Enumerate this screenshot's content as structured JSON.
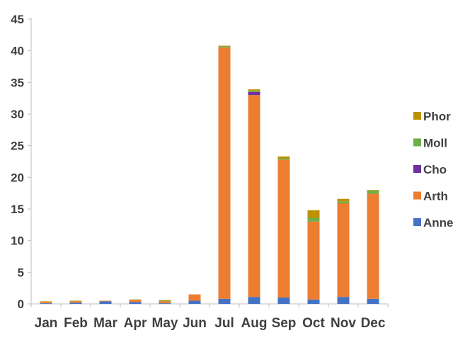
{
  "chart_data": {
    "type": "bar",
    "stacked": true,
    "title": "",
    "xlabel": "",
    "ylabel": "",
    "categories": [
      "Jan",
      "Feb",
      "Mar",
      "Apr",
      "May",
      "Jun",
      "Jul",
      "Aug",
      "Sep",
      "Oct",
      "Nov",
      "Dec"
    ],
    "ylim": [
      0,
      45
    ],
    "yticks": [
      0,
      5,
      10,
      15,
      20,
      25,
      30,
      35,
      40,
      45
    ],
    "grid": false,
    "legend_position": "right",
    "series": [
      {
        "name": "Anne",
        "color": "#4472C4",
        "values": [
          0.1,
          0.2,
          0.4,
          0.3,
          0.1,
          0.5,
          0.8,
          1.1,
          1.0,
          0.7,
          1.1,
          0.8
        ]
      },
      {
        "name": "Arth",
        "color": "#ED7D31",
        "values": [
          0.2,
          0.2,
          0.1,
          0.3,
          0.3,
          1.0,
          39.7,
          31.9,
          21.8,
          12.3,
          14.8,
          16.6
        ]
      },
      {
        "name": "Cho",
        "color": "#7030A0",
        "values": [
          0.0,
          0.0,
          0.0,
          0.0,
          0.0,
          0.0,
          0.0,
          0.5,
          0.0,
          0.0,
          0.0,
          0.0
        ]
      },
      {
        "name": "Moll",
        "color": "#70AD47",
        "values": [
          0.0,
          0.0,
          0.0,
          0.0,
          0.1,
          0.0,
          0.2,
          0.2,
          0.2,
          0.6,
          0.3,
          0.5
        ]
      },
      {
        "name": "Phor",
        "color": "#BF9000",
        "values": [
          0.1,
          0.1,
          0.0,
          0.1,
          0.1,
          0.0,
          0.1,
          0.2,
          0.3,
          1.2,
          0.4,
          0.1
        ]
      }
    ]
  }
}
